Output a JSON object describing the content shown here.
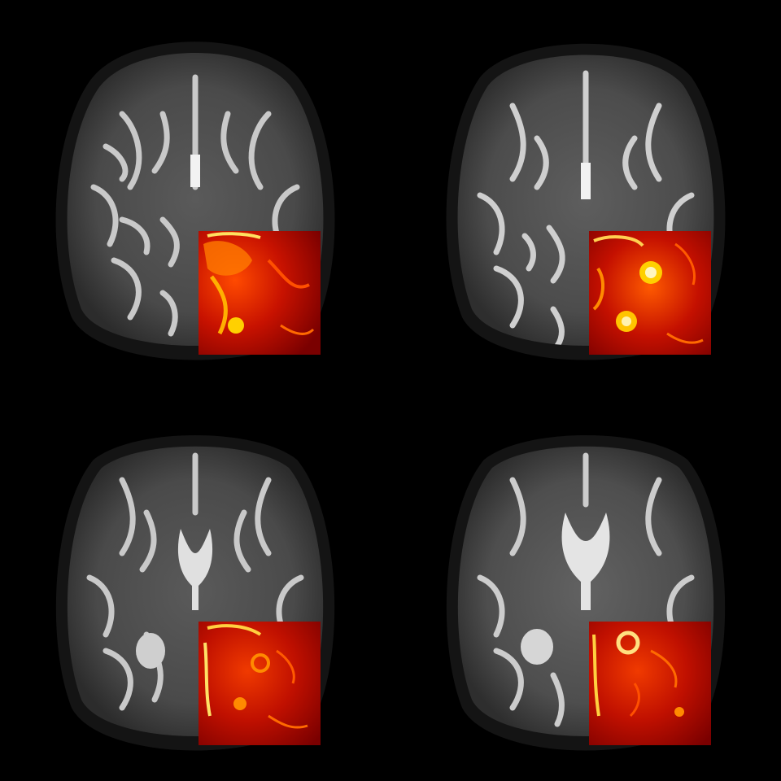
{
  "figure": {
    "description_role": "axial-brain-mri-mosaic",
    "background_color": "#000000",
    "colormap": {
      "name": "hot",
      "stops": [
        "#4a0000",
        "#a00000",
        "#e01e00",
        "#ff6a00",
        "#ffd000",
        "#fffbe0"
      ]
    },
    "grayscale": {
      "skull": "#1c1c1c",
      "white_matter": "#4a4a4a",
      "gray_matter": "#7a7a7a",
      "csf": "#d9d9d9"
    },
    "panels": [
      {
        "id": "top-left",
        "ventricle_shape": "thin"
      },
      {
        "id": "top-right",
        "ventricle_shape": "thin"
      },
      {
        "id": "bottom-left",
        "ventricle_shape": "butterfly"
      },
      {
        "id": "bottom-right",
        "ventricle_shape": "butterfly"
      }
    ]
  }
}
